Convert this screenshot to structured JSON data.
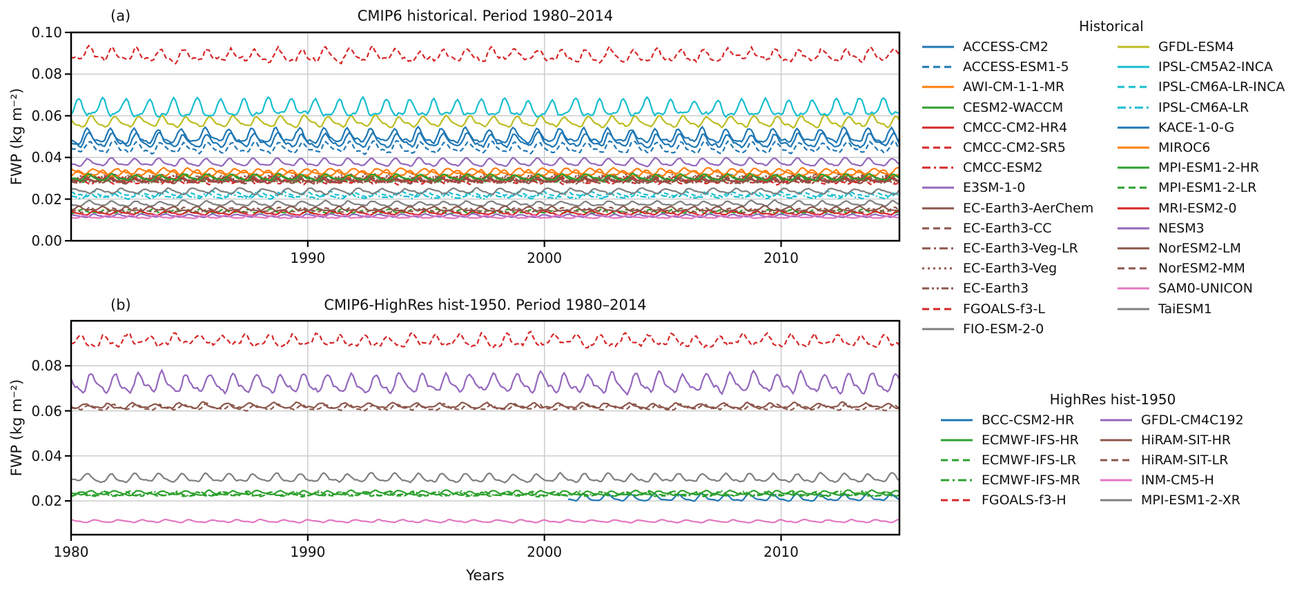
{
  "chart_data": [
    {
      "type": "line",
      "panel": "(a)",
      "title": "CMIP6 historical. Period 1980–2014",
      "xlabel": "",
      "ylabel": "FWP (kg m⁻²)",
      "xlim": [
        1980,
        2015
      ],
      "ylim": [
        0.0,
        0.1
      ],
      "x_ticks": [
        "1990",
        "2000",
        "2010"
      ],
      "y_ticks": [
        "0.00",
        "0.02",
        "0.04",
        "0.06",
        "0.08",
        "0.10"
      ],
      "grid": true,
      "series": [
        {
          "name": "ACCESS-CM2",
          "color": "#1f77b4",
          "linestyle": "solid",
          "mean": 0.05,
          "seasonal_amplitude": 0.0028,
          "noise_amplitude": 0.0014
        },
        {
          "name": "ACCESS-ESM1-5",
          "color": "#1f77b4",
          "linestyle": "dashed",
          "mean": 0.0445,
          "seasonal_amplitude": 0.0022,
          "noise_amplitude": 0.0012
        },
        {
          "name": "AWI-CM-1-1-MR",
          "color": "#ff7f0e",
          "linestyle": "solid",
          "mean": 0.0332,
          "seasonal_amplitude": 0.0012,
          "noise_amplitude": 0.0007
        },
        {
          "name": "CESM2-WACCM",
          "color": "#2ca02c",
          "linestyle": "solid",
          "mean": 0.0298,
          "seasonal_amplitude": 0.0013,
          "noise_amplitude": 0.0008
        },
        {
          "name": "CMCC-CM2-HR4",
          "color": "#d62728",
          "linestyle": "solid",
          "mean": 0.0293,
          "seasonal_amplitude": 0.0012,
          "noise_amplitude": 0.0008
        },
        {
          "name": "CMCC-CM2-SR5",
          "color": "#d62728",
          "linestyle": "dashed",
          "mean": 0.0288,
          "seasonal_amplitude": 0.0012,
          "noise_amplitude": 0.0008
        },
        {
          "name": "CMCC-ESM2",
          "color": "#d62728",
          "linestyle": "dashdot",
          "mean": 0.029,
          "seasonal_amplitude": 0.0012,
          "noise_amplitude": 0.0008
        },
        {
          "name": "E3SM-1-0",
          "color": "#9467bd",
          "linestyle": "solid",
          "mean": 0.0375,
          "seasonal_amplitude": 0.0016,
          "noise_amplitude": 0.0006
        },
        {
          "name": "EC-Earth3-AerChem",
          "color": "#8c564b",
          "linestyle": "solid",
          "mean": 0.03,
          "seasonal_amplitude": 0.0013,
          "noise_amplitude": 0.0008
        },
        {
          "name": "EC-Earth3-CC",
          "color": "#8c564b",
          "linestyle": "dashed",
          "mean": 0.0295,
          "seasonal_amplitude": 0.0013,
          "noise_amplitude": 0.0008
        },
        {
          "name": "EC-Earth3-Veg-LR",
          "color": "#8c564b",
          "linestyle": "dashdot",
          "mean": 0.0288,
          "seasonal_amplitude": 0.0013,
          "noise_amplitude": 0.0008
        },
        {
          "name": "EC-Earth3-Veg",
          "color": "#8c564b",
          "linestyle": "dotted",
          "mean": 0.0292,
          "seasonal_amplitude": 0.0013,
          "noise_amplitude": 0.0008
        },
        {
          "name": "EC-Earth3",
          "color": "#8c564b",
          "linestyle": "dashdotdot",
          "mean": 0.0298,
          "seasonal_amplitude": 0.0013,
          "noise_amplitude": 0.0008
        },
        {
          "name": "FGOALS-f3-L",
          "color": "#d62728",
          "linestyle": "dashed",
          "mean": 0.0888,
          "seasonal_amplitude": 0.0025,
          "noise_amplitude": 0.0022
        },
        {
          "name": "FIO-ESM-2-0",
          "color": "#7f7f7f",
          "linestyle": "solid",
          "mean": 0.0178,
          "seasonal_amplitude": 0.001,
          "noise_amplitude": 0.0007
        },
        {
          "name": "GFDL-ESM4",
          "color": "#bcbd22",
          "linestyle": "solid",
          "mean": 0.057,
          "seasonal_amplitude": 0.0022,
          "noise_amplitude": 0.001
        },
        {
          "name": "IPSL-CM5A2-INCA",
          "color": "#17becf",
          "linestyle": "solid",
          "mean": 0.0632,
          "seasonal_amplitude": 0.0035,
          "noise_amplitude": 0.0016
        },
        {
          "name": "IPSL-CM6A-LR-INCA",
          "color": "#17becf",
          "linestyle": "dashed",
          "mean": 0.0222,
          "seasonal_amplitude": 0.0011,
          "noise_amplitude": 0.0007
        },
        {
          "name": "IPSL-CM6A-LR",
          "color": "#17becf",
          "linestyle": "dashdot",
          "mean": 0.0215,
          "seasonal_amplitude": 0.0011,
          "noise_amplitude": 0.0007
        },
        {
          "name": "KACE-1-0-G",
          "color": "#1f77b4",
          "linestyle": "solid",
          "mean": 0.0478,
          "seasonal_amplitude": 0.0028,
          "noise_amplitude": 0.0014
        },
        {
          "name": "MIROC6",
          "color": "#ff7f0e",
          "linestyle": "solid",
          "mean": 0.0322,
          "seasonal_amplitude": 0.0013,
          "noise_amplitude": 0.0007
        },
        {
          "name": "MPI-ESM1-2-HR",
          "color": "#2ca02c",
          "linestyle": "solid",
          "mean": 0.0303,
          "seasonal_amplitude": 0.0012,
          "noise_amplitude": 0.0007
        },
        {
          "name": "MPI-ESM1-2-LR",
          "color": "#2ca02c",
          "linestyle": "dashed",
          "mean": 0.014,
          "seasonal_amplitude": 0.0008,
          "noise_amplitude": 0.0005
        },
        {
          "name": "MRI-ESM2-0",
          "color": "#d62728",
          "linestyle": "solid",
          "mean": 0.0133,
          "seasonal_amplitude": 0.0008,
          "noise_amplitude": 0.0005
        },
        {
          "name": "NESM3",
          "color": "#9467bd",
          "linestyle": "solid",
          "mean": 0.012,
          "seasonal_amplitude": 0.0006,
          "noise_amplitude": 0.0004
        },
        {
          "name": "NorESM2-LM",
          "color": "#8c564b",
          "linestyle": "solid",
          "mean": 0.0152,
          "seasonal_amplitude": 0.0009,
          "noise_amplitude": 0.0006
        },
        {
          "name": "NorESM2-MM",
          "color": "#8c564b",
          "linestyle": "dashed",
          "mean": 0.0146,
          "seasonal_amplitude": 0.0009,
          "noise_amplitude": 0.0006
        },
        {
          "name": "SAM0-UNICON",
          "color": "#e377c2",
          "linestyle": "solid",
          "mean": 0.0114,
          "seasonal_amplitude": 0.0006,
          "noise_amplitude": 0.0004
        },
        {
          "name": "TaiESM1",
          "color": "#7f7f7f",
          "linestyle": "solid",
          "mean": 0.0238,
          "seasonal_amplitude": 0.0011,
          "noise_amplitude": 0.0007
        }
      ]
    },
    {
      "type": "line",
      "panel": "(b)",
      "title": "CMIP6-HighRes hist-1950. Period 1980–2014",
      "xlabel": "Years",
      "ylabel": "FWP (kg m⁻²)",
      "xlim": [
        1980,
        2015
      ],
      "ylim": [
        0.005,
        0.1
      ],
      "x_ticks": [
        "1980",
        "1990",
        "2000",
        "2010"
      ],
      "y_ticks": [
        "0.02",
        "0.04",
        "0.06",
        "0.08"
      ],
      "grid": true,
      "series": [
        {
          "name": "BCC-CSM2-HR",
          "color": "#1f77b4",
          "linestyle": "solid",
          "mean": 0.0213,
          "seasonal_amplitude": 0.0013,
          "noise_amplitude": 0.0005,
          "start_year": 2001
        },
        {
          "name": "ECMWF-IFS-HR",
          "color": "#2ca02c",
          "linestyle": "solid",
          "mean": 0.0235,
          "seasonal_amplitude": 0.0008,
          "noise_amplitude": 0.0005
        },
        {
          "name": "ECMWF-IFS-LR",
          "color": "#2ca02c",
          "linestyle": "dashed",
          "mean": 0.0228,
          "seasonal_amplitude": 0.0008,
          "noise_amplitude": 0.0005
        },
        {
          "name": "ECMWF-IFS-MR",
          "color": "#2ca02c",
          "linestyle": "dashdot",
          "mean": 0.0231,
          "seasonal_amplitude": 0.0008,
          "noise_amplitude": 0.0005
        },
        {
          "name": "FGOALS-f3-H",
          "color": "#d62728",
          "linestyle": "dashed",
          "mean": 0.091,
          "seasonal_amplitude": 0.0022,
          "noise_amplitude": 0.002
        },
        {
          "name": "GFDL-CM4C192",
          "color": "#9467bd",
          "linestyle": "solid",
          "mean": 0.072,
          "seasonal_amplitude": 0.0035,
          "noise_amplitude": 0.0018
        },
        {
          "name": "HiRAM-SIT-HR",
          "color": "#8c564b",
          "linestyle": "solid",
          "mean": 0.0622,
          "seasonal_amplitude": 0.001,
          "noise_amplitude": 0.0008
        },
        {
          "name": "HiRAM-SIT-LR",
          "color": "#8c564b",
          "linestyle": "dashed",
          "mean": 0.0615,
          "seasonal_amplitude": 0.001,
          "noise_amplitude": 0.0008
        },
        {
          "name": "INM-CM5-H",
          "color": "#e377c2",
          "linestyle": "solid",
          "mean": 0.011,
          "seasonal_amplitude": 0.0005,
          "noise_amplitude": 0.0003
        },
        {
          "name": "MPI-ESM1-2-XR",
          "color": "#7f7f7f",
          "linestyle": "solid",
          "mean": 0.03,
          "seasonal_amplitude": 0.0016,
          "noise_amplitude": 0.0008
        }
      ]
    }
  ],
  "axis_labels": {
    "ylabel": "FWP (kg m⁻²)",
    "xlabel": "Years"
  },
  "legends": [
    {
      "title": "Historical",
      "columns": [
        [
          {
            "label": "ACCESS-CM2",
            "color": "#1f77b4",
            "linestyle": "solid"
          },
          {
            "label": "ACCESS-ESM1-5",
            "color": "#1f77b4",
            "linestyle": "dashed"
          },
          {
            "label": "AWI-CM-1-1-MR",
            "color": "#ff7f0e",
            "linestyle": "solid"
          },
          {
            "label": "CESM2-WACCM",
            "color": "#2ca02c",
            "linestyle": "solid"
          },
          {
            "label": "CMCC-CM2-HR4",
            "color": "#d62728",
            "linestyle": "solid"
          },
          {
            "label": "CMCC-CM2-SR5",
            "color": "#d62728",
            "linestyle": "dashed"
          },
          {
            "label": "CMCC-ESM2",
            "color": "#d62728",
            "linestyle": "dashdot"
          },
          {
            "label": "E3SM-1-0",
            "color": "#9467bd",
            "linestyle": "solid"
          },
          {
            "label": "EC-Earth3-AerChem",
            "color": "#8c564b",
            "linestyle": "solid"
          },
          {
            "label": "EC-Earth3-CC",
            "color": "#8c564b",
            "linestyle": "dashed"
          },
          {
            "label": "EC-Earth3-Veg-LR",
            "color": "#8c564b",
            "linestyle": "dashdot"
          },
          {
            "label": "EC-Earth3-Veg",
            "color": "#8c564b",
            "linestyle": "dotted"
          },
          {
            "label": "EC-Earth3",
            "color": "#8c564b",
            "linestyle": "dashdotdot"
          },
          {
            "label": "FGOALS-f3-L",
            "color": "#d62728",
            "linestyle": "dashed"
          },
          {
            "label": "FIO-ESM-2-0",
            "color": "#7f7f7f",
            "linestyle": "solid"
          }
        ],
        [
          {
            "label": "GFDL-ESM4",
            "color": "#bcbd22",
            "linestyle": "solid"
          },
          {
            "label": "IPSL-CM5A2-INCA",
            "color": "#17becf",
            "linestyle": "solid"
          },
          {
            "label": "IPSL-CM6A-LR-INCA",
            "color": "#17becf",
            "linestyle": "dashed"
          },
          {
            "label": "IPSL-CM6A-LR",
            "color": "#17becf",
            "linestyle": "dashdot"
          },
          {
            "label": "KACE-1-0-G",
            "color": "#1f77b4",
            "linestyle": "solid"
          },
          {
            "label": "MIROC6",
            "color": "#ff7f0e",
            "linestyle": "solid"
          },
          {
            "label": "MPI-ESM1-2-HR",
            "color": "#2ca02c",
            "linestyle": "solid"
          },
          {
            "label": "MPI-ESM1-2-LR",
            "color": "#2ca02c",
            "linestyle": "dashed"
          },
          {
            "label": "MRI-ESM2-0",
            "color": "#d62728",
            "linestyle": "solid"
          },
          {
            "label": "NESM3",
            "color": "#9467bd",
            "linestyle": "solid"
          },
          {
            "label": "NorESM2-LM",
            "color": "#8c564b",
            "linestyle": "solid"
          },
          {
            "label": "NorESM2-MM",
            "color": "#8c564b",
            "linestyle": "dashed"
          },
          {
            "label": "SAM0-UNICON",
            "color": "#e377c2",
            "linestyle": "solid"
          },
          {
            "label": "TaiESM1",
            "color": "#7f7f7f",
            "linestyle": "solid"
          }
        ]
      ]
    },
    {
      "title": "HighRes hist-1950",
      "columns": [
        [
          {
            "label": "BCC-CSM2-HR",
            "color": "#1f77b4",
            "linestyle": "solid"
          },
          {
            "label": "ECMWF-IFS-HR",
            "color": "#2ca02c",
            "linestyle": "solid"
          },
          {
            "label": "ECMWF-IFS-LR",
            "color": "#2ca02c",
            "linestyle": "dashed"
          },
          {
            "label": "ECMWF-IFS-MR",
            "color": "#2ca02c",
            "linestyle": "dashdot"
          },
          {
            "label": "FGOALS-f3-H",
            "color": "#d62728",
            "linestyle": "dashed"
          }
        ],
        [
          {
            "label": "GFDL-CM4C192",
            "color": "#9467bd",
            "linestyle": "solid"
          },
          {
            "label": "HiRAM-SIT-HR",
            "color": "#8c564b",
            "linestyle": "solid"
          },
          {
            "label": "HiRAM-SIT-LR",
            "color": "#8c564b",
            "linestyle": "dashed"
          },
          {
            "label": "INM-CM5-H",
            "color": "#e377c2",
            "linestyle": "solid"
          },
          {
            "label": "MPI-ESM1-2-XR",
            "color": "#7f7f7f",
            "linestyle": "solid"
          }
        ]
      ]
    }
  ]
}
